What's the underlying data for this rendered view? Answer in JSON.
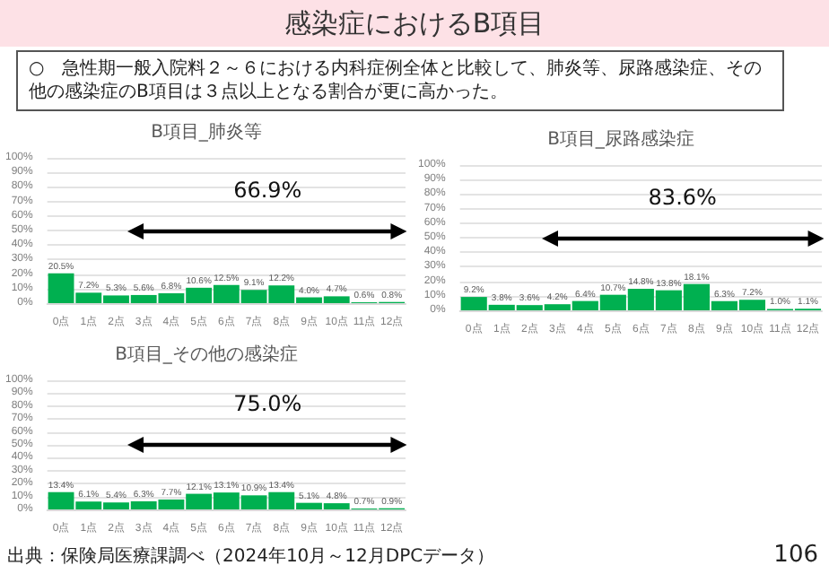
{
  "chart_data": [
    {
      "type": "other",
      "title": "感染症におけるB項目",
      "annotations": [
        "○　急性期一般入院料２～６における内科症例全体と比較して、肺炎等、尿路感染症、その他の感染症のB項目は３点以上となる割合が更に高かった。",
        "出典：保険局医療課調べ（2024年10月～12月DPCデータ）",
        "106"
      ]
    },
    {
      "type": "bar",
      "title": "B項目_肺炎等",
      "categories": [
        "0点",
        "1点",
        "2点",
        "3点",
        "4点",
        "5点",
        "6点",
        "7点",
        "8点",
        "9点",
        "10点",
        "11点",
        "12点"
      ],
      "values": [
        20.5,
        7.2,
        5.3,
        5.6,
        6.8,
        10.6,
        12.5,
        9.1,
        12.2,
        4.0,
        4.7,
        0.6,
        0.8
      ],
      "value_labels": [
        "20.5%",
        "7.2%",
        "5.3%",
        "5.6%",
        "6.8%",
        "10.6%",
        "12.5%",
        "9.1%",
        "12.2%",
        "4.0%",
        "4.7%",
        "0.6%",
        "0.8%"
      ],
      "color": "#00b050",
      "ylim": [
        0,
        100
      ],
      "yticks": [
        {
          "value": 0,
          "label": "0%"
        },
        {
          "value": 10,
          "label": "10%"
        },
        {
          "value": 20,
          "label": "20%"
        },
        {
          "value": 30,
          "label": "30%"
        },
        {
          "value": 40,
          "label": "40%"
        },
        {
          "value": 50,
          "label": "50%"
        },
        {
          "value": 60,
          "label": "60%"
        },
        {
          "value": 70,
          "label": "70%"
        },
        {
          "value": 80,
          "label": "80%"
        },
        {
          "value": 90,
          "label": "90%"
        },
        {
          "value": 100,
          "label": "100%"
        }
      ],
      "grid": "y",
      "annotations": [
        "66.9%"
      ]
    },
    {
      "type": "bar",
      "title": "B項目_尿路感染症",
      "categories": [
        "0点",
        "1点",
        "2点",
        "3点",
        "4点",
        "5点",
        "6点",
        "7点",
        "8点",
        "9点",
        "10点",
        "11点",
        "12点"
      ],
      "values": [
        9.2,
        3.8,
        3.6,
        4.2,
        6.4,
        10.7,
        14.8,
        13.8,
        18.1,
        6.3,
        7.2,
        1.0,
        1.1
      ],
      "value_labels": [
        "9.2%",
        "3.8%",
        "3.6%",
        "4.2%",
        "6.4%",
        "10.7%",
        "14.8%",
        "13.8%",
        "18.1%",
        "6.3%",
        "7.2%",
        "1.0%",
        "1.1%"
      ],
      "color": "#00b050",
      "ylim": [
        0,
        100
      ],
      "yticks": [
        {
          "value": 0,
          "label": "0%"
        },
        {
          "value": 10,
          "label": "10%"
        },
        {
          "value": 20,
          "label": "20%"
        },
        {
          "value": 30,
          "label": "30%"
        },
        {
          "value": 40,
          "label": "40%"
        },
        {
          "value": 50,
          "label": "50%"
        },
        {
          "value": 60,
          "label": "60%"
        },
        {
          "value": 70,
          "label": "70%"
        },
        {
          "value": 80,
          "label": "80%"
        },
        {
          "value": 90,
          "label": "90%"
        },
        {
          "value": 100,
          "label": "100%"
        }
      ],
      "grid": "y",
      "annotations": [
        "83.6%"
      ]
    },
    {
      "type": "bar",
      "title": "B項目_その他の感染症",
      "categories": [
        "0点",
        "1点",
        "2点",
        "3点",
        "4点",
        "5点",
        "6点",
        "7点",
        "8点",
        "9点",
        "10点",
        "11点",
        "12点"
      ],
      "values": [
        13.4,
        6.1,
        5.4,
        6.3,
        7.7,
        12.1,
        13.1,
        10.9,
        13.4,
        5.1,
        4.8,
        0.7,
        0.9
      ],
      "value_labels": [
        "13.4%",
        "6.1%",
        "5.4%",
        "6.3%",
        "7.7%",
        "12.1%",
        "13.1%",
        "10.9%",
        "13.4%",
        "5.1%",
        "4.8%",
        "0.7%",
        "0.9%"
      ],
      "color": "#00b050",
      "ylim": [
        0,
        100
      ],
      "yticks": [
        {
          "value": 0,
          "label": "0%"
        },
        {
          "value": 10,
          "label": "10%"
        },
        {
          "value": 20,
          "label": "20%"
        },
        {
          "value": 30,
          "label": "30%"
        },
        {
          "value": 40,
          "label": "40%"
        },
        {
          "value": 50,
          "label": "50%"
        },
        {
          "value": 60,
          "label": "60%"
        },
        {
          "value": 70,
          "label": "70%"
        },
        {
          "value": 80,
          "label": "80%"
        },
        {
          "value": 90,
          "label": "90%"
        },
        {
          "value": 100,
          "label": "100%"
        }
      ],
      "grid": "y",
      "annotations": [
        "75.0%"
      ]
    }
  ]
}
